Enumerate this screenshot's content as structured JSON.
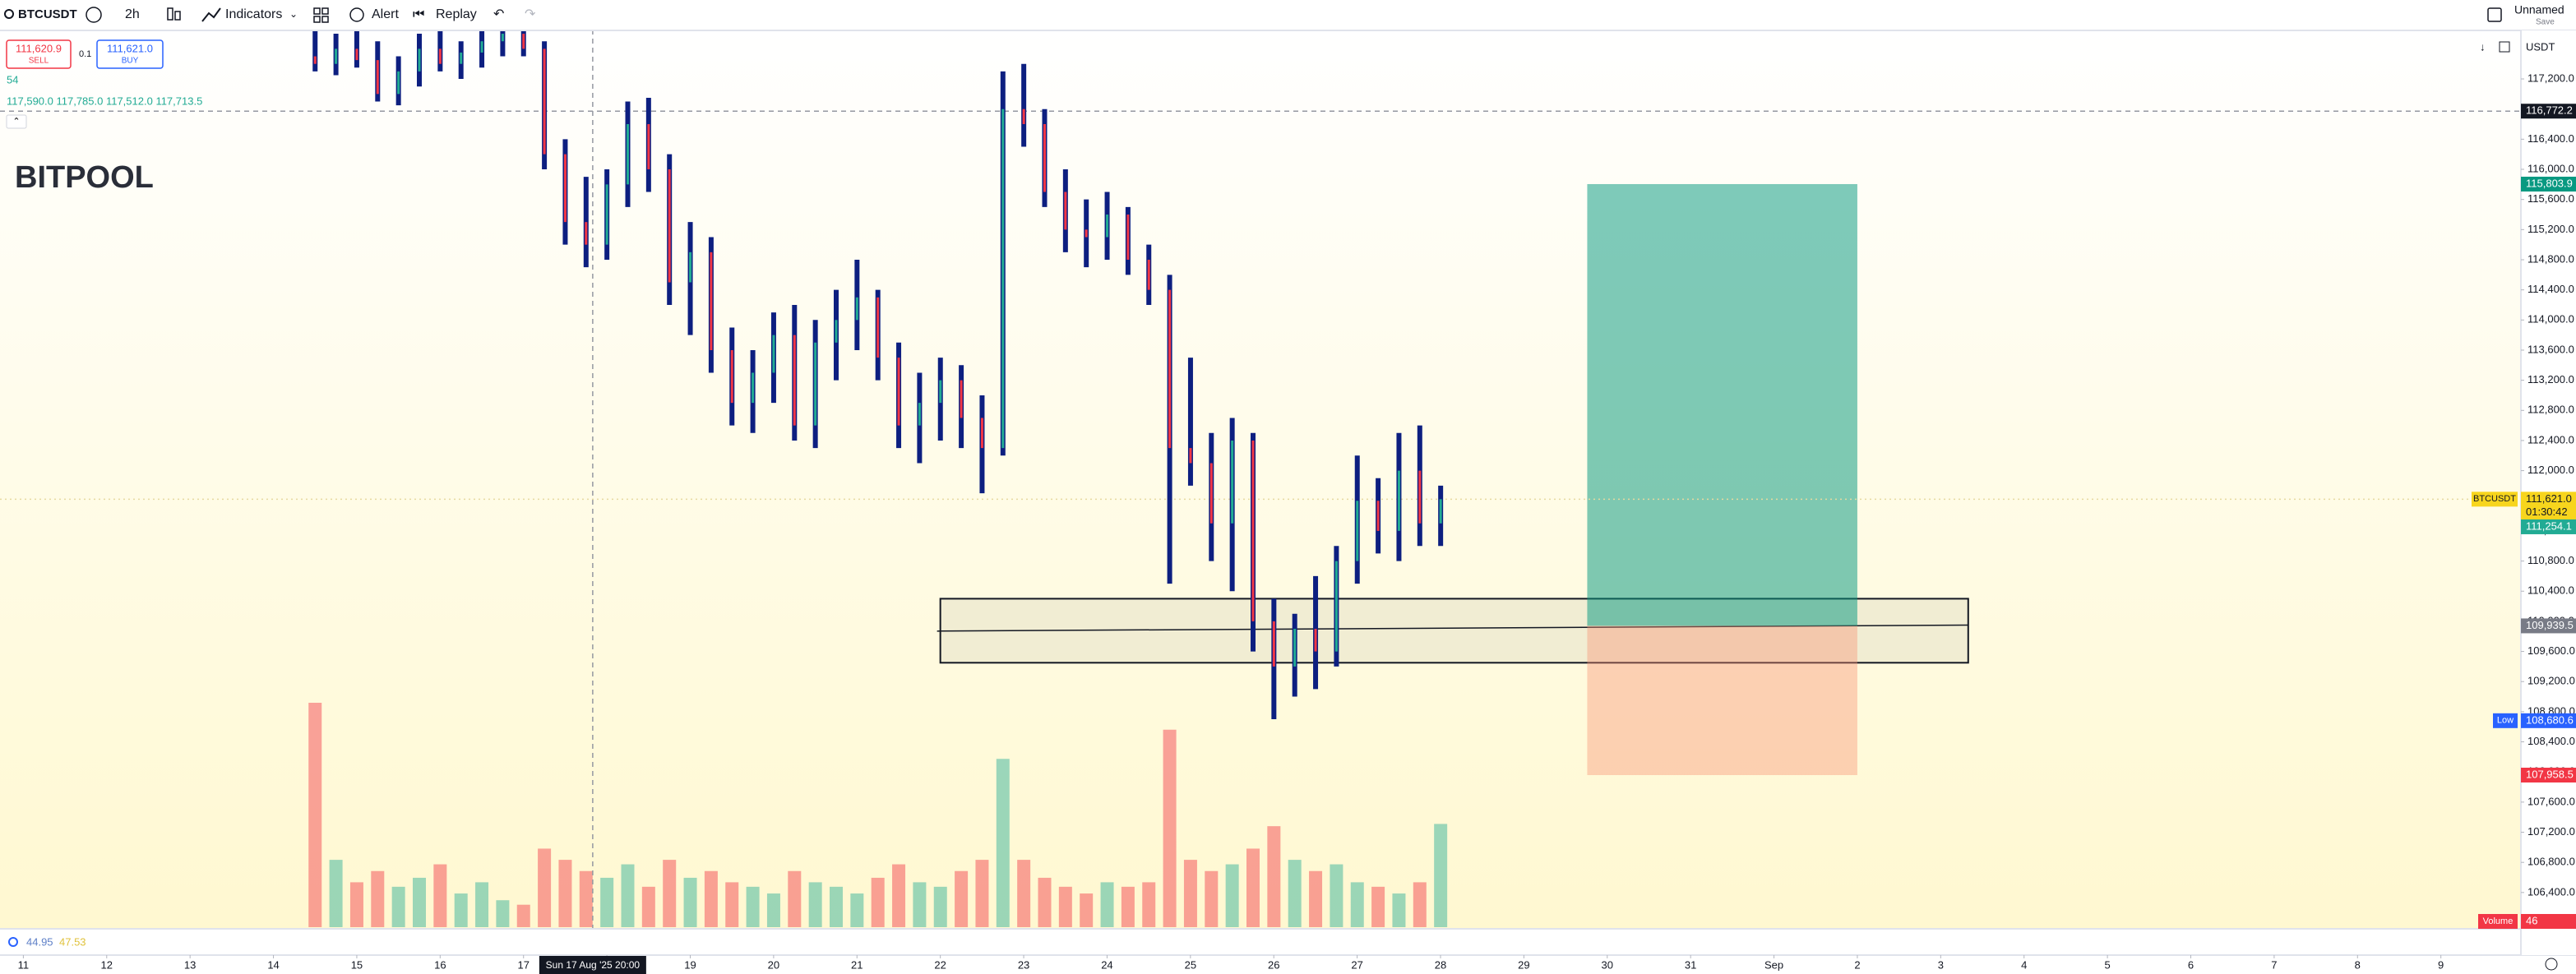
{
  "toolbar": {
    "symbol": "BTCUSDT",
    "interval": "2h",
    "indicators": "Indicators",
    "alert": "Alert",
    "replay": "Replay",
    "layout_name": "Unnamed",
    "save": "Save"
  },
  "legend": {
    "sell_price": "111,620.9",
    "sell": "SELL",
    "spread": "0.1",
    "buy_price": "111,621.0",
    "buy": "BUY",
    "volume": "54",
    "ohlc": "117,590.0 117,785.0 117,512.0 117,713.5"
  },
  "watermark": "BITPOOL",
  "indicator_values": {
    "first": "44.95",
    "second": "47.53"
  },
  "chart": {
    "type": "ohlc",
    "currency": "USDT",
    "bar_color": "#0d1f80",
    "up_color": "#22ab94",
    "down_color": "#f23645",
    "ylim": [
      105940,
      117855
    ],
    "yticks": [
      {
        "value": 106400,
        "label": "106,400.0"
      },
      {
        "value": 106800,
        "label": "106,800.0"
      },
      {
        "value": 107200,
        "label": "107,200.0"
      },
      {
        "value": 107600,
        "label": "107,600.0"
      },
      {
        "value": 108000,
        "label": "108,000.0"
      },
      {
        "value": 108400,
        "label": "108,400.0"
      },
      {
        "value": 108800,
        "label": "108,800.0"
      },
      {
        "value": 109200,
        "label": "109,200.0"
      },
      {
        "value": 109600,
        "label": "109,600.0"
      },
      {
        "value": 110000,
        "label": "110,000.0"
      },
      {
        "value": 110400,
        "label": "110,400.0"
      },
      {
        "value": 110800,
        "label": "110,800.0"
      },
      {
        "value": 111200,
        "label": "111,200.0"
      },
      {
        "value": 111600,
        "label": "111,600.0"
      },
      {
        "value": 112000,
        "label": "112,000.0"
      },
      {
        "value": 112400,
        "label": "112,400.0"
      },
      {
        "value": 112800,
        "label": "112,800.0"
      },
      {
        "value": 113200,
        "label": "113,200.0"
      },
      {
        "value": 113600,
        "label": "113,600.0"
      },
      {
        "value": 114000,
        "label": "114,000.0"
      },
      {
        "value": 114400,
        "label": "114,400.0"
      },
      {
        "value": 114800,
        "label": "114,800.0"
      },
      {
        "value": 115200,
        "label": "115,200.0"
      },
      {
        "value": 115600,
        "label": "115,600.0"
      },
      {
        "value": 116000,
        "label": "116,000.0"
      },
      {
        "value": 116400,
        "label": "116,400.0"
      },
      {
        "value": 116800,
        "label": "116,800.0"
      },
      {
        "value": 117200,
        "label": "117,200.0"
      }
    ],
    "xlim": [
      10.72,
      40.96
    ],
    "xticks": [
      11,
      12,
      13,
      14,
      15,
      16,
      17,
      18,
      19,
      20,
      21,
      22,
      23,
      24,
      25,
      26,
      27,
      28,
      29,
      30,
      31,
      {
        "value": 32,
        "label": "Sep"
      },
      {
        "value": 33,
        "label": "2"
      },
      {
        "value": 34,
        "label": "3"
      },
      {
        "value": 35,
        "label": "4"
      },
      {
        "value": 36,
        "label": "5"
      },
      {
        "value": 37,
        "label": "6"
      },
      {
        "value": 38,
        "label": "7"
      },
      {
        "value": 39,
        "label": "8"
      },
      {
        "value": 40,
        "label": "9"
      }
    ],
    "crosshair": {
      "price": 116772.2,
      "price_label": "116,772.2",
      "day": 17.83,
      "time_label": "Sun 17 Aug '25  20:00"
    },
    "candles": {
      "open": [
        117500,
        117400,
        117600,
        117450,
        117000,
        117300,
        117600,
        117400,
        117550,
        117700,
        117800,
        117600,
        116200,
        115300,
        115000,
        115800,
        116600,
        116000,
        114500,
        114900,
        113600,
        112900,
        113300,
        113800,
        112600,
        113700,
        114000,
        114300,
        113500,
        112600,
        112900,
        113200,
        112700,
        112300,
        116800,
        116600,
        115700,
        115200,
        115100,
        115400,
        114800,
        114400,
        112300,
        112100,
        111300,
        112400,
        110000,
        109400,
        109900,
        109600,
        110800,
        111600,
        111200,
        112000,
        111300
      ],
      "high": [
        117900,
        117800,
        117850,
        117700,
        117500,
        117800,
        117850,
        117700,
        117900,
        117900,
        117900,
        117700,
        116400,
        115900,
        116000,
        116900,
        116950,
        116200,
        115300,
        115100,
        113900,
        113600,
        114100,
        114200,
        114000,
        114400,
        114800,
        114400,
        113700,
        113300,
        113500,
        113400,
        113000,
        117300,
        117400,
        116800,
        116000,
        115600,
        115700,
        115500,
        115000,
        114600,
        113500,
        112500,
        112700,
        112500,
        110300,
        110100,
        110600,
        111000,
        112200,
        111900,
        112500,
        112600,
        111800
      ],
      "low": [
        117300,
        117250,
        117350,
        116900,
        116850,
        117100,
        117300,
        117200,
        117350,
        117500,
        117500,
        116000,
        115000,
        114700,
        114800,
        115500,
        115700,
        114200,
        113800,
        113300,
        112600,
        112500,
        112900,
        112400,
        112300,
        113200,
        113600,
        113200,
        112300,
        112100,
        112400,
        112300,
        111700,
        112200,
        116300,
        115500,
        114900,
        114700,
        114800,
        114600,
        114200,
        110500,
        111800,
        110800,
        110400,
        109600,
        108700,
        109000,
        109100,
        109400,
        110500,
        110900,
        110800,
        111000,
        111000
      ],
      "close": [
        117400,
        117600,
        117450,
        117000,
        117300,
        117600,
        117400,
        117550,
        117700,
        117800,
        117600,
        116200,
        115300,
        115000,
        115800,
        116600,
        116000,
        114500,
        114900,
        113600,
        112900,
        113300,
        113800,
        112600,
        113700,
        114000,
        114300,
        113500,
        112600,
        112900,
        113200,
        112700,
        112300,
        116800,
        116600,
        115700,
        115200,
        115100,
        115400,
        114800,
        114400,
        112300,
        112100,
        111300,
        112400,
        110000,
        109400,
        109900,
        109600,
        110800,
        111600,
        111200,
        112000,
        111300,
        111621
      ],
      "volume": [
        100,
        30,
        20,
        25,
        18,
        22,
        28,
        15,
        20,
        12,
        10,
        35,
        30,
        25,
        22,
        28,
        18,
        30,
        22,
        25,
        20,
        18,
        15,
        25,
        20,
        18,
        15,
        22,
        28,
        20,
        18,
        25,
        30,
        75,
        30,
        22,
        18,
        15,
        20,
        18,
        20,
        88,
        30,
        25,
        28,
        35,
        45,
        30,
        25,
        28,
        20,
        18,
        15,
        20,
        46
      ]
    },
    "volume_ylim": [
      0,
      400
    ],
    "volume_label": "Volume",
    "zone": {
      "x": [
        22.0,
        34.33
      ],
      "ylim": [
        109450,
        110300
      ],
      "line": [
        109870,
        109950
      ]
    },
    "position": {
      "x": [
        29.76,
        33.0
      ],
      "entry": 109939.5,
      "target": 115803.9,
      "stop": 107958.5
    },
    "price_tags": [
      {
        "value": 116772.2,
        "label": "116,772.2",
        "color": "#131722"
      },
      {
        "value": 115803.9,
        "label": "115,803.9",
        "color": "#089981"
      },
      {
        "value": 111621.0,
        "label": "111,621.0",
        "color": "#f7d51d",
        "symbol": "BTCUSDT",
        "countdown": "01:30:42"
      },
      {
        "value": 111254.1,
        "label": "111,254.1",
        "color": "#22ab94"
      },
      {
        "value": 109939.5,
        "label": "109,939.5",
        "color": "#787b86"
      },
      {
        "value": 108680.6,
        "label": "108,680.6",
        "color": "#2962ff",
        "prefix": "Low"
      },
      {
        "value": 107958.5,
        "label": "107,958.5",
        "color": "#f23645"
      }
    ]
  }
}
